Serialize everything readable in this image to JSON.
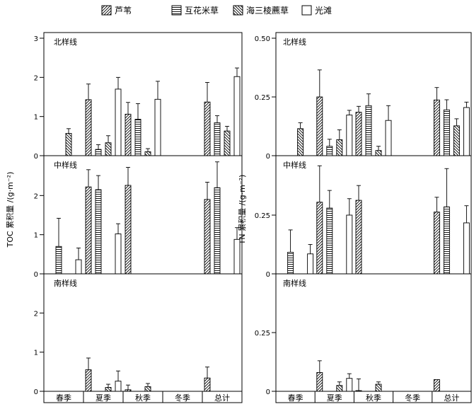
{
  "legend": [
    {
      "name": "芦苇",
      "pattern": "hatch-diag"
    },
    {
      "name": "互花米草",
      "pattern": "hatch-horiz"
    },
    {
      "name": "海三棱藨草",
      "pattern": "hatch-back"
    },
    {
      "name": "光滩",
      "pattern": "none"
    }
  ],
  "categories": [
    "春季",
    "夏季",
    "秋季",
    "冬季",
    "总计"
  ],
  "chart_data": [
    {
      "type": "bar",
      "ylabel": "TOC 累积量 /(g·m⁻²)",
      "panels": [
        {
          "title": "北样线",
          "ylim": [
            0,
            3
          ],
          "yticks": [
            "0",
            "1",
            "2",
            "3"
          ],
          "series": [
            {
              "values": [
                null,
                1.43,
                1.06,
                null,
                1.37
              ],
              "errors": [
                null,
                0.4,
                0.3,
                null,
                0.5
              ]
            },
            {
              "values": [
                null,
                0.16,
                0.93,
                null,
                0.84
              ],
              "errors": [
                null,
                0.12,
                0.4,
                null,
                0.18
              ]
            },
            {
              "values": [
                0.57,
                0.33,
                0.1,
                null,
                0.63
              ],
              "errors": [
                0.12,
                0.18,
                0.08,
                null,
                0.12
              ]
            },
            {
              "values": [
                null,
                1.7,
                1.44,
                null,
                2.02
              ],
              "errors": [
                null,
                0.3,
                0.46,
                null,
                0.22
              ]
            }
          ]
        },
        {
          "title": "中样线",
          "ylim": [
            0,
            3
          ],
          "yticks": [
            "0",
            "1",
            "2"
          ],
          "series": [
            {
              "values": [
                null,
                2.22,
                2.26,
                null,
                1.9
              ],
              "errors": [
                null,
                0.44,
                0.46,
                null,
                0.44
              ]
            },
            {
              "values": [
                0.7,
                2.15,
                null,
                null,
                2.2
              ],
              "errors": [
                0.72,
                0.36,
                null,
                null,
                0.66
              ]
            },
            {
              "values": [
                null,
                null,
                null,
                null,
                null
              ],
              "errors": [
                null,
                null,
                null,
                null,
                null
              ]
            },
            {
              "values": [
                0.36,
                1.02,
                null,
                null,
                0.88
              ],
              "errors": [
                0.3,
                0.26,
                null,
                null,
                0.3
              ]
            }
          ]
        },
        {
          "title": "南样线",
          "ylim": [
            0,
            3
          ],
          "yticks": [
            "0",
            "1",
            "2"
          ],
          "series": [
            {
              "values": [
                null,
                0.55,
                0.04,
                null,
                0.34
              ],
              "errors": [
                null,
                0.3,
                0.12,
                null,
                0.28
              ]
            },
            {
              "values": [
                null,
                null,
                null,
                null,
                null
              ],
              "errors": [
                null,
                null,
                null,
                null,
                null
              ]
            },
            {
              "values": [
                null,
                0.1,
                0.12,
                null,
                null
              ],
              "errors": [
                null,
                0.08,
                0.08,
                null,
                null
              ]
            },
            {
              "values": [
                null,
                0.26,
                null,
                null,
                null
              ],
              "errors": [
                null,
                0.26,
                null,
                null,
                null
              ]
            }
          ]
        }
      ]
    },
    {
      "type": "bar",
      "ylabel": "TN 累积量 /(g·m⁻²)",
      "panels": [
        {
          "title": "北样线",
          "ylim": [
            0,
            0.5
          ],
          "yticks": [
            "0",
            "0.25",
            "0.50"
          ],
          "series": [
            {
              "values": [
                null,
                0.25,
                0.185,
                null,
                0.237
              ],
              "errors": [
                null,
                0.115,
                0.025,
                null,
                0.053
              ]
            },
            {
              "values": [
                null,
                0.04,
                0.213,
                null,
                0.195
              ],
              "errors": [
                null,
                0.03,
                0.05,
                null,
                0.043
              ]
            },
            {
              "values": [
                0.115,
                0.068,
                0.022,
                null,
                0.127
              ],
              "errors": [
                0.025,
                0.042,
                0.018,
                null,
                0.03
              ]
            },
            {
              "values": [
                null,
                0.173,
                0.15,
                null,
                0.205
              ],
              "errors": [
                null,
                0.02,
                0.063,
                null,
                0.023
              ]
            }
          ]
        },
        {
          "title": "中样线",
          "ylim": [
            0,
            0.5
          ],
          "yticks": [
            "0",
            "0.25"
          ],
          "series": [
            {
              "values": [
                null,
                0.305,
                0.313,
                null,
                0.263
              ],
              "errors": [
                null,
                0.155,
                0.063,
                null,
                0.063
              ]
            },
            {
              "values": [
                0.092,
                0.28,
                null,
                null,
                0.285
              ],
              "errors": [
                0.095,
                0.075,
                null,
                null,
                0.163
              ]
            },
            {
              "values": [
                null,
                null,
                null,
                null,
                null
              ],
              "errors": [
                null,
                null,
                null,
                null,
                null
              ]
            },
            {
              "values": [
                0.085,
                0.25,
                null,
                null,
                0.217
              ],
              "errors": [
                0.04,
                0.07,
                null,
                null,
                0.073
              ]
            }
          ]
        },
        {
          "title": "南样线",
          "ylim": [
            0,
            0.5
          ],
          "yticks": [
            "0",
            "0.25"
          ],
          "series": [
            {
              "values": [
                null,
                0.08,
                0.003,
                null,
                0.05
              ],
              "errors": [
                null,
                0.05,
                0.05,
                null,
                null
              ]
            },
            {
              "values": [
                null,
                null,
                null,
                null,
                null
              ],
              "errors": [
                null,
                null,
                null,
                null,
                null
              ]
            },
            {
              "values": [
                null,
                0.025,
                0.03,
                null,
                null
              ],
              "errors": [
                null,
                0.015,
                0.01,
                null,
                null
              ]
            },
            {
              "values": [
                null,
                0.055,
                null,
                null,
                null
              ],
              "errors": [
                null,
                0.02,
                null,
                null,
                null
              ]
            }
          ]
        }
      ]
    }
  ]
}
